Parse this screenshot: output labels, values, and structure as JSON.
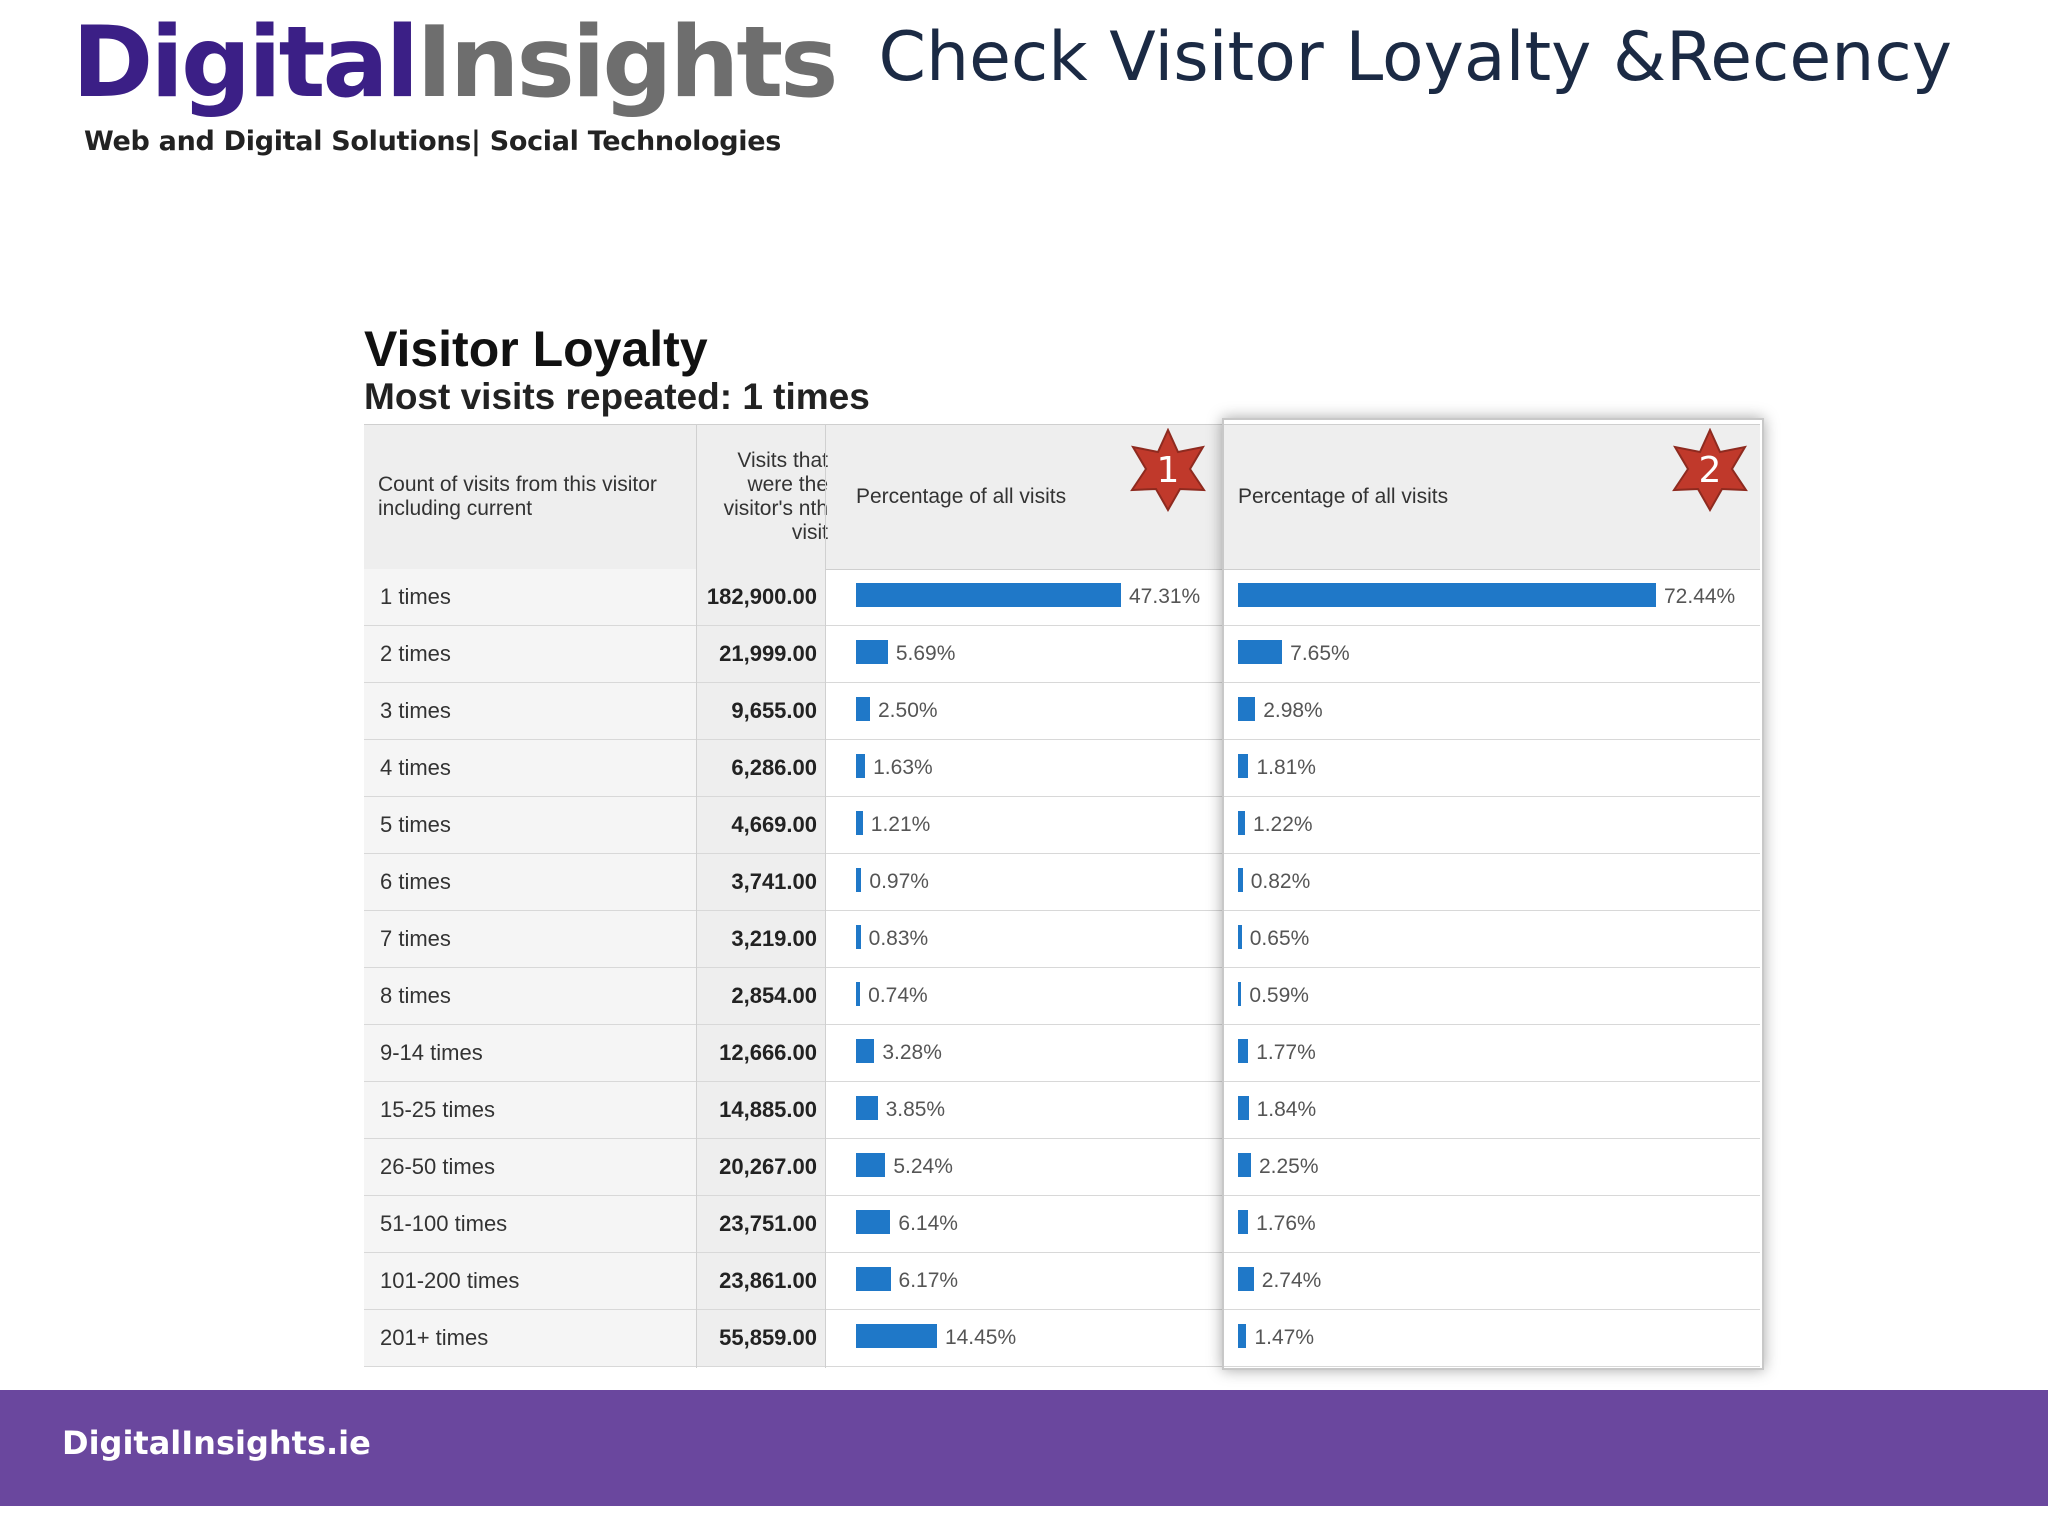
{
  "header": {
    "logo_part1": "Digital",
    "logo_part2": "Insights",
    "tagline": "Web and Digital Solutions| Social Technologies",
    "slide_title": "Check Visitor Loyalty &Recency"
  },
  "report": {
    "title": "Visitor Loyalty",
    "subtitle": "Most visits repeated: 1 times",
    "columns": {
      "count": "Count of visits from this visitor including current",
      "visits": "Visits that were the visitor's nth visit",
      "pct1": "Percentage of all visits",
      "pct2": "Percentage of all visits"
    },
    "badges": [
      "1",
      "2"
    ],
    "rows": [
      {
        "label": "1 times",
        "visits": "182,900.00",
        "pct1": "47.31%",
        "pct2": "72.44%",
        "v1": 47.31,
        "v2": 72.44
      },
      {
        "label": "2 times",
        "visits": "21,999.00",
        "pct1": "5.69%",
        "pct2": "7.65%",
        "v1": 5.69,
        "v2": 7.65
      },
      {
        "label": "3 times",
        "visits": "9,655.00",
        "pct1": "2.50%",
        "pct2": "2.98%",
        "v1": 2.5,
        "v2": 2.98
      },
      {
        "label": "4 times",
        "visits": "6,286.00",
        "pct1": "1.63%",
        "pct2": "1.81%",
        "v1": 1.63,
        "v2": 1.81
      },
      {
        "label": "5 times",
        "visits": "4,669.00",
        "pct1": "1.21%",
        "pct2": "1.22%",
        "v1": 1.21,
        "v2": 1.22
      },
      {
        "label": "6 times",
        "visits": "3,741.00",
        "pct1": "0.97%",
        "pct2": "0.82%",
        "v1": 0.97,
        "v2": 0.82
      },
      {
        "label": "7 times",
        "visits": "3,219.00",
        "pct1": "0.83%",
        "pct2": "0.65%",
        "v1": 0.83,
        "v2": 0.65
      },
      {
        "label": "8 times",
        "visits": "2,854.00",
        "pct1": "0.74%",
        "pct2": "0.59%",
        "v1": 0.74,
        "v2": 0.59
      },
      {
        "label": "9-14 times",
        "visits": "12,666.00",
        "pct1": "3.28%",
        "pct2": "1.77%",
        "v1": 3.28,
        "v2": 1.77
      },
      {
        "label": "15-25 times",
        "visits": "14,885.00",
        "pct1": "3.85%",
        "pct2": "1.84%",
        "v1": 3.85,
        "v2": 1.84
      },
      {
        "label": "26-50 times",
        "visits": "20,267.00",
        "pct1": "5.24%",
        "pct2": "2.25%",
        "v1": 5.24,
        "v2": 2.25
      },
      {
        "label": "51-100 times",
        "visits": "23,751.00",
        "pct1": "6.14%",
        "pct2": "1.76%",
        "v1": 6.14,
        "v2": 1.76
      },
      {
        "label": "101-200 times",
        "visits": "23,861.00",
        "pct1": "6.17%",
        "pct2": "2.74%",
        "v1": 6.17,
        "v2": 2.74
      },
      {
        "label": "201+ times",
        "visits": "55,859.00",
        "pct1": "14.45%",
        "pct2": "1.47%",
        "v1": 14.45,
        "v2": 1.47
      }
    ]
  },
  "footer": {
    "site": "DigitalInsights.ie"
  },
  "colors": {
    "brand_purple": "#3b1f86",
    "footer_purple": "#6a479e",
    "bar_blue": "#1f78c8",
    "badge_red": "#c0392b"
  }
}
